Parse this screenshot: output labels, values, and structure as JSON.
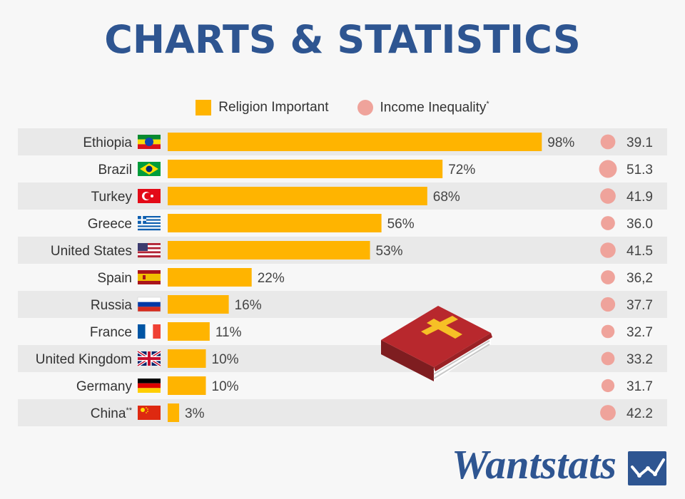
{
  "header": {
    "title": "CHARTS & STATISTICS"
  },
  "colors": {
    "title": "#2e5591",
    "bar": "#ffb400",
    "circle": "#efa39b",
    "row_band": "#e9e9e9",
    "brand": "#2e5591"
  },
  "legend": {
    "religion_label": "Religion Important",
    "inequality_label": "Income Inequality",
    "inequality_mark": "*"
  },
  "brand": {
    "name": "Wantstats",
    "icon": "chart-logo-icon"
  },
  "decoration": {
    "icon": "bible-book-icon"
  },
  "chart_data": {
    "type": "bar",
    "orientation": "horizontal",
    "categories": [
      "Ethiopia",
      "Brazil",
      "Turkey",
      "Greece",
      "United States",
      "Spain",
      "Russia",
      "France",
      "United Kingdom",
      "Germany",
      "China"
    ],
    "category_marks": [
      "",
      "",
      "",
      "",
      "",
      "",
      "",
      "",
      "",
      "",
      "**"
    ],
    "flags": [
      "ethiopia-flag-icon",
      "brazil-flag-icon",
      "turkey-flag-icon",
      "greece-flag-icon",
      "usa-flag-icon",
      "spain-flag-icon",
      "russia-flag-icon",
      "france-flag-icon",
      "uk-flag-icon",
      "germany-flag-icon",
      "china-flag-icon"
    ],
    "series": [
      {
        "name": "Religion Important",
        "values": [
          98,
          72,
          68,
          56,
          53,
          22,
          16,
          11,
          10,
          10,
          3
        ],
        "labels": [
          "98%",
          "72%",
          "68%",
          "56%",
          "53%",
          "22%",
          "16%",
          "11%",
          "10%",
          "10%",
          "3%"
        ]
      },
      {
        "name": "Income Inequality",
        "values": [
          39.1,
          51.3,
          41.9,
          36.0,
          41.5,
          36.2,
          37.7,
          32.7,
          33.2,
          31.7,
          42.2
        ],
        "labels": [
          "39.1",
          "51.3",
          "41.9",
          "36.0",
          "41.5",
          "36,2",
          "37.7",
          "32.7",
          "33.2",
          "31.7",
          "42.2"
        ]
      }
    ],
    "xlim": [
      0,
      100
    ]
  }
}
